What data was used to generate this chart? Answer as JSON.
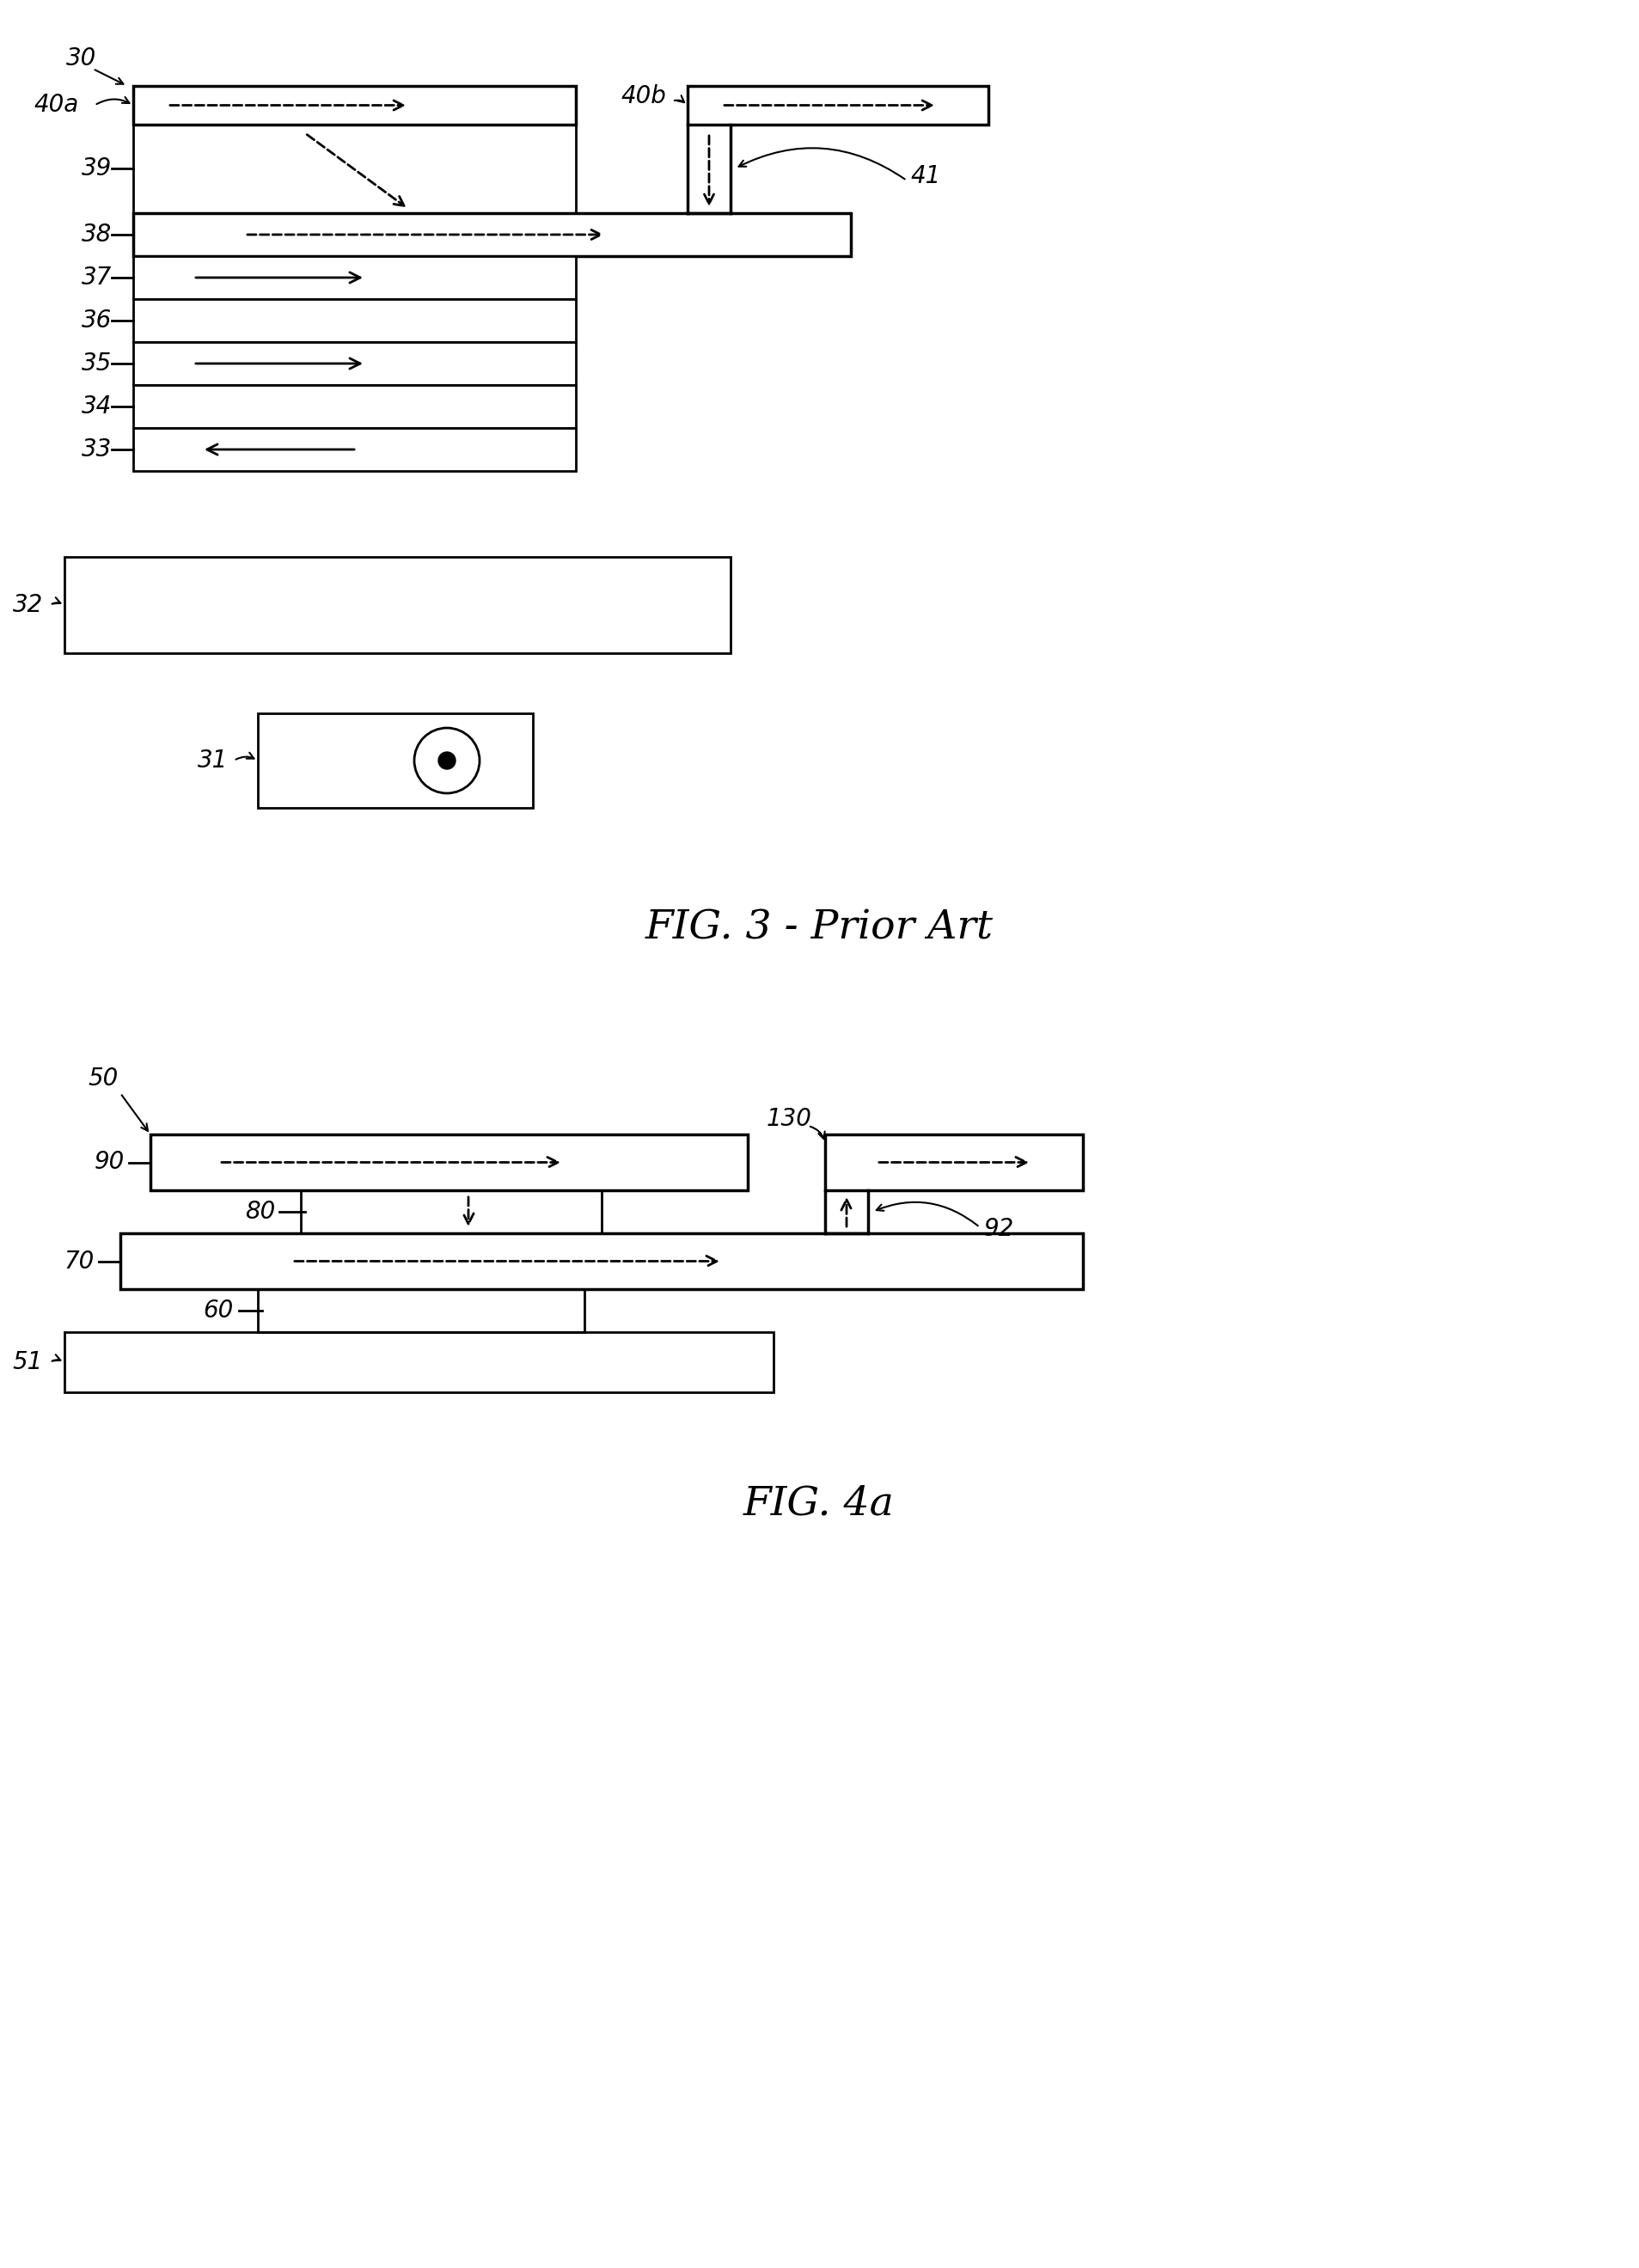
{
  "fig_width": 19.07,
  "fig_height": 26.39,
  "bg_color": "#ffffff",
  "line_color": "#000000",
  "fig3_title": "FIG. 3 - Prior Art",
  "fig4_title": "FIG. 4a",
  "lw": 2.0,
  "lw_thick": 2.5,
  "label_fs": 20,
  "caption_fs": 34
}
